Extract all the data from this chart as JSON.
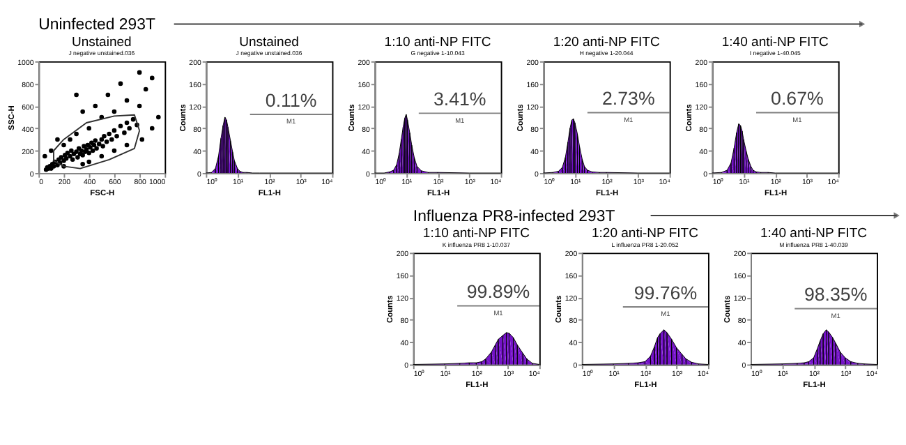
{
  "chart_data": [
    {
      "type": "other",
      "title": "Uninfected 293T"
    },
    {
      "type": "scatter",
      "title": "Unstained",
      "subtitle": "J negative unstained.036",
      "xlabel": "FSC-H",
      "ylabel": "SSC-H",
      "xlim": [
        0,
        1000
      ],
      "ylim": [
        0,
        1000
      ],
      "xticks": [
        0,
        200,
        400,
        600,
        800,
        1000
      ],
      "yticks": [
        0,
        200,
        400,
        600,
        800,
        1000
      ],
      "series": [
        {
          "type": "scatter",
          "marker": "circle",
          "color": "#000000",
          "x": [
            60,
            70,
            80,
            90,
            100,
            110,
            120,
            130,
            150,
            160,
            170,
            180,
            200,
            210,
            220,
            230,
            250,
            260,
            270,
            280,
            300,
            310,
            320,
            330,
            340,
            350,
            360,
            370,
            380,
            390,
            400,
            410,
            420,
            430,
            440,
            450,
            460,
            480,
            500,
            510,
            520,
            540,
            560,
            580,
            600,
            620,
            650,
            680,
            700,
            720,
            750,
            780,
            300,
            250,
            200,
            400,
            500,
            600,
            700,
            800,
            850,
            900,
            550,
            650,
            450,
            350,
            950,
            900,
            820,
            150,
            100,
            50,
            400,
            500,
            600,
            350,
            200,
            700,
            800,
            300
          ],
          "values": [
            30,
            50,
            40,
            60,
            40,
            80,
            60,
            100,
            70,
            120,
            90,
            140,
            110,
            160,
            130,
            180,
            150,
            200,
            120,
            170,
            190,
            140,
            220,
            170,
            200,
            160,
            240,
            190,
            210,
            250,
            180,
            230,
            270,
            200,
            250,
            290,
            220,
            260,
            300,
            240,
            330,
            280,
            350,
            300,
            380,
            330,
            420,
            360,
            450,
            400,
            480,
            430,
            350,
            300,
            250,
            400,
            500,
            550,
            650,
            600,
            750,
            850,
            700,
            800,
            600,
            550,
            500,
            400,
            300,
            300,
            200,
            150,
            100,
            150,
            200,
            80,
            60,
            250,
            900,
            700
          ]
        },
        {
          "type": "line",
          "color": "#303030",
          "x": [
            120,
            120,
            200,
            330,
            560,
            760,
            800
          ],
          "values": [
            200,
            110,
            60,
            40,
            120,
            220,
            380
          ]
        },
        {
          "type": "line",
          "color": "#303030",
          "x": [
            120,
            200,
            380,
            600,
            760,
            800
          ],
          "values": [
            200,
            300,
            450,
            510,
            520,
            380
          ]
        }
      ]
    },
    {
      "type": "area",
      "title": "Unstained",
      "subtitle": "J negative unstained.036",
      "xlabel": "FL1-H",
      "ylabel": "Counts",
      "log": "x",
      "xlim": [
        1,
        10000
      ],
      "ylim": [
        0,
        200
      ],
      "xticks": [
        {
          "value": 1,
          "label": "10⁰"
        },
        {
          "value": 10,
          "label": "10¹"
        },
        {
          "value": 100,
          "label": "10²"
        },
        {
          "value": 1000,
          "label": "10³"
        },
        {
          "value": 10000,
          "label": "10⁴"
        }
      ],
      "yticks": [
        0,
        40,
        80,
        120,
        160,
        200
      ],
      "annotations": [
        "0.11%",
        "M1"
      ],
      "series": [
        {
          "type": "area",
          "color": "#7412c8",
          "x": [
            1,
            1.5,
            2,
            2.5,
            3,
            3.5,
            4,
            4.5,
            5,
            6,
            7,
            8,
            10,
            12,
            15,
            20,
            30,
            50,
            100,
            1000,
            10000
          ],
          "values": [
            0,
            1,
            8,
            30,
            62,
            85,
            100,
            95,
            82,
            58,
            38,
            22,
            8,
            3,
            1,
            1,
            0,
            0,
            0,
            0,
            0
          ]
        },
        {
          "type": "line",
          "color": "#808080",
          "x": [
            25,
            10000
          ],
          "values": [
            105,
            105
          ]
        }
      ]
    },
    {
      "type": "area",
      "title": "1:10 anti-NP FITC",
      "subtitle": "G negative 1-10.043",
      "xlabel": "FL1-H",
      "ylabel": "Counts",
      "log": "x",
      "xlim": [
        1,
        10000
      ],
      "ylim": [
        0,
        200
      ],
      "xticks": [
        {
          "value": 1,
          "label": "10⁰"
        },
        {
          "value": 10,
          "label": "10¹"
        },
        {
          "value": 100,
          "label": "10²"
        },
        {
          "value": 1000,
          "label": "10³"
        },
        {
          "value": 10000,
          "label": "10⁴"
        }
      ],
      "yticks": [
        0,
        40,
        80,
        120,
        160,
        200
      ],
      "annotations": [
        "3.41%",
        "M1"
      ],
      "series": [
        {
          "type": "area",
          "color": "#7412c8",
          "x": [
            1,
            2,
            3,
            4,
            5,
            6,
            7,
            8,
            9,
            10,
            11,
            13,
            15,
            18,
            22,
            30,
            50,
            100,
            1000,
            10000
          ],
          "values": [
            0,
            0,
            2,
            5,
            15,
            35,
            60,
            82,
            98,
            105,
            95,
            72,
            50,
            28,
            12,
            4,
            1,
            1,
            0,
            0
          ]
        },
        {
          "type": "line",
          "color": "#808080",
          "x": [
            25,
            10000
          ],
          "values": [
            107,
            107
          ]
        }
      ]
    },
    {
      "type": "area",
      "title": "1:20 anti-NP FITC",
      "subtitle": "H negative 1-20.044",
      "xlabel": "FL1-H",
      "ylabel": "Counts",
      "log": "x",
      "xlim": [
        1,
        10000
      ],
      "ylim": [
        0,
        200
      ],
      "xticks": [
        {
          "value": 1,
          "label": "10⁰"
        },
        {
          "value": 10,
          "label": "10¹"
        },
        {
          "value": 100,
          "label": "10²"
        },
        {
          "value": 1000,
          "label": "10³"
        },
        {
          "value": 10000,
          "label": "10⁴"
        }
      ],
      "yticks": [
        0,
        40,
        80,
        120,
        160,
        200
      ],
      "annotations": [
        "2.73%",
        "M1"
      ],
      "series": [
        {
          "type": "area",
          "color": "#7412c8",
          "x": [
            1,
            2,
            3,
            4,
            5,
            6,
            7,
            8,
            9,
            10,
            12,
            14,
            17,
            20,
            25,
            35,
            60,
            100,
            1000,
            10000
          ],
          "values": [
            0,
            1,
            3,
            10,
            28,
            55,
            80,
            95,
            97,
            90,
            70,
            48,
            25,
            12,
            5,
            2,
            1,
            1,
            0,
            0
          ]
        },
        {
          "type": "line",
          "color": "#808080",
          "x": [
            25,
            10000
          ],
          "values": [
            108,
            108
          ]
        }
      ]
    },
    {
      "type": "area",
      "title": "1:40 anti-NP FITC",
      "subtitle": "I negative 1-40.045",
      "xlabel": "FL1-H",
      "ylabel": "Counts",
      "log": "x",
      "xlim": [
        1,
        10000
      ],
      "ylim": [
        0,
        200
      ],
      "xticks": [
        {
          "value": 1,
          "label": "10⁰"
        },
        {
          "value": 10,
          "label": "10¹"
        },
        {
          "value": 100,
          "label": "10²"
        },
        {
          "value": 1000,
          "label": "10³"
        },
        {
          "value": 10000,
          "label": "10⁴"
        }
      ],
      "yticks": [
        0,
        40,
        80,
        120,
        160,
        200
      ],
      "annotations": [
        "0.67%",
        "M1"
      ],
      "series": [
        {
          "type": "area",
          "color": "#7412c8",
          "x": [
            1,
            2,
            3,
            4,
            5,
            6,
            7,
            8,
            9,
            10,
            12,
            14,
            17,
            20,
            25,
            35,
            60,
            100,
            1000,
            10000
          ],
          "values": [
            0,
            1,
            5,
            18,
            45,
            72,
            88,
            85,
            75,
            60,
            40,
            25,
            12,
            5,
            2,
            1,
            1,
            0,
            0,
            0
          ]
        },
        {
          "type": "line",
          "color": "#808080",
          "x": [
            25,
            10000
          ],
          "values": [
            108,
            108
          ]
        }
      ]
    },
    {
      "type": "other",
      "title": "Influenza PR8-infected 293T"
    },
    {
      "type": "area",
      "title": "1:10 anti-NP FITC",
      "subtitle": "K influenza PR8 1-10.037",
      "xlabel": "FL1-H",
      "ylabel": "Counts",
      "log": "x",
      "xlim": [
        1,
        10000
      ],
      "ylim": [
        0,
        200
      ],
      "xticks": [
        {
          "value": 1,
          "label": "10⁰"
        },
        {
          "value": 10,
          "label": "10¹"
        },
        {
          "value": 100,
          "label": "10²"
        },
        {
          "value": 1000,
          "label": "10³"
        },
        {
          "value": 10000,
          "label": "10⁴"
        }
      ],
      "yticks": [
        0,
        40,
        80,
        120,
        160,
        200
      ],
      "annotations": [
        "99.89%",
        "M1"
      ],
      "series": [
        {
          "type": "area",
          "color": "#7412c8",
          "x": [
            1,
            10,
            30,
            60,
            100,
            150,
            200,
            300,
            400,
            500,
            700,
            900,
            1100,
            1500,
            2000,
            3000,
            4000,
            6000,
            10000
          ],
          "values": [
            0,
            1,
            2,
            3,
            3,
            5,
            10,
            22,
            35,
            45,
            52,
            57,
            56,
            48,
            35,
            20,
            10,
            2,
            0
          ]
        },
        {
          "type": "line",
          "color": "#808080",
          "x": [
            25,
            10000
          ],
          "values": [
            105,
            105
          ]
        }
      ]
    },
    {
      "type": "area",
      "title": "1:20 anti-NP FITC",
      "subtitle": "L influenza PR8 1-20.052",
      "xlabel": "FL1-H",
      "ylabel": "Counts",
      "log": "x",
      "xlim": [
        1,
        10000
      ],
      "ylim": [
        0,
        200
      ],
      "xticks": [
        {
          "value": 1,
          "label": "10⁰"
        },
        {
          "value": 10,
          "label": "10¹"
        },
        {
          "value": 100,
          "label": "10²"
        },
        {
          "value": 1000,
          "label": "10³"
        },
        {
          "value": 10000,
          "label": "10⁴"
        }
      ],
      "yticks": [
        0,
        40,
        80,
        120,
        160,
        200
      ],
      "annotations": [
        "99.76%",
        "M1"
      ],
      "series": [
        {
          "type": "area",
          "color": "#7412c8",
          "x": [
            1,
            10,
            30,
            60,
            100,
            150,
            200,
            250,
            300,
            400,
            500,
            700,
            1000,
            1500,
            2000,
            3000,
            5000,
            10000
          ],
          "values": [
            0,
            1,
            2,
            3,
            5,
            15,
            32,
            48,
            55,
            62,
            57,
            45,
            30,
            18,
            10,
            4,
            1,
            0
          ]
        },
        {
          "type": "line",
          "color": "#808080",
          "x": [
            20,
            10000
          ],
          "values": [
            103,
            103
          ]
        }
      ]
    },
    {
      "type": "area",
      "title": "1:40 anti-NP FITC",
      "subtitle": "M influenza PR8 1-40.039",
      "xlabel": "FL1-H",
      "ylabel": "Counts",
      "log": "x",
      "xlim": [
        1,
        10000
      ],
      "ylim": [
        0,
        200
      ],
      "xticks": [
        {
          "value": 1,
          "label": "10⁰"
        },
        {
          "value": 10,
          "label": "10¹"
        },
        {
          "value": 100,
          "label": "10²"
        },
        {
          "value": 1000,
          "label": "10³"
        },
        {
          "value": 10000,
          "label": "10⁴"
        }
      ],
      "yticks": [
        0,
        40,
        80,
        120,
        160,
        200
      ],
      "annotations": [
        "98.35%",
        "M1"
      ],
      "series": [
        {
          "type": "area",
          "color": "#7412c8",
          "x": [
            1,
            10,
            30,
            50,
            70,
            100,
            130,
            160,
            200,
            250,
            300,
            400,
            500,
            700,
            1000,
            1500,
            2500,
            4000,
            10000
          ],
          "values": [
            0,
            1,
            2,
            3,
            5,
            12,
            28,
            42,
            55,
            62,
            58,
            48,
            38,
            22,
            12,
            5,
            2,
            1,
            0
          ]
        },
        {
          "type": "line",
          "color": "#808080",
          "x": [
            25,
            10000
          ],
          "values": [
            100,
            100
          ]
        }
      ]
    }
  ]
}
